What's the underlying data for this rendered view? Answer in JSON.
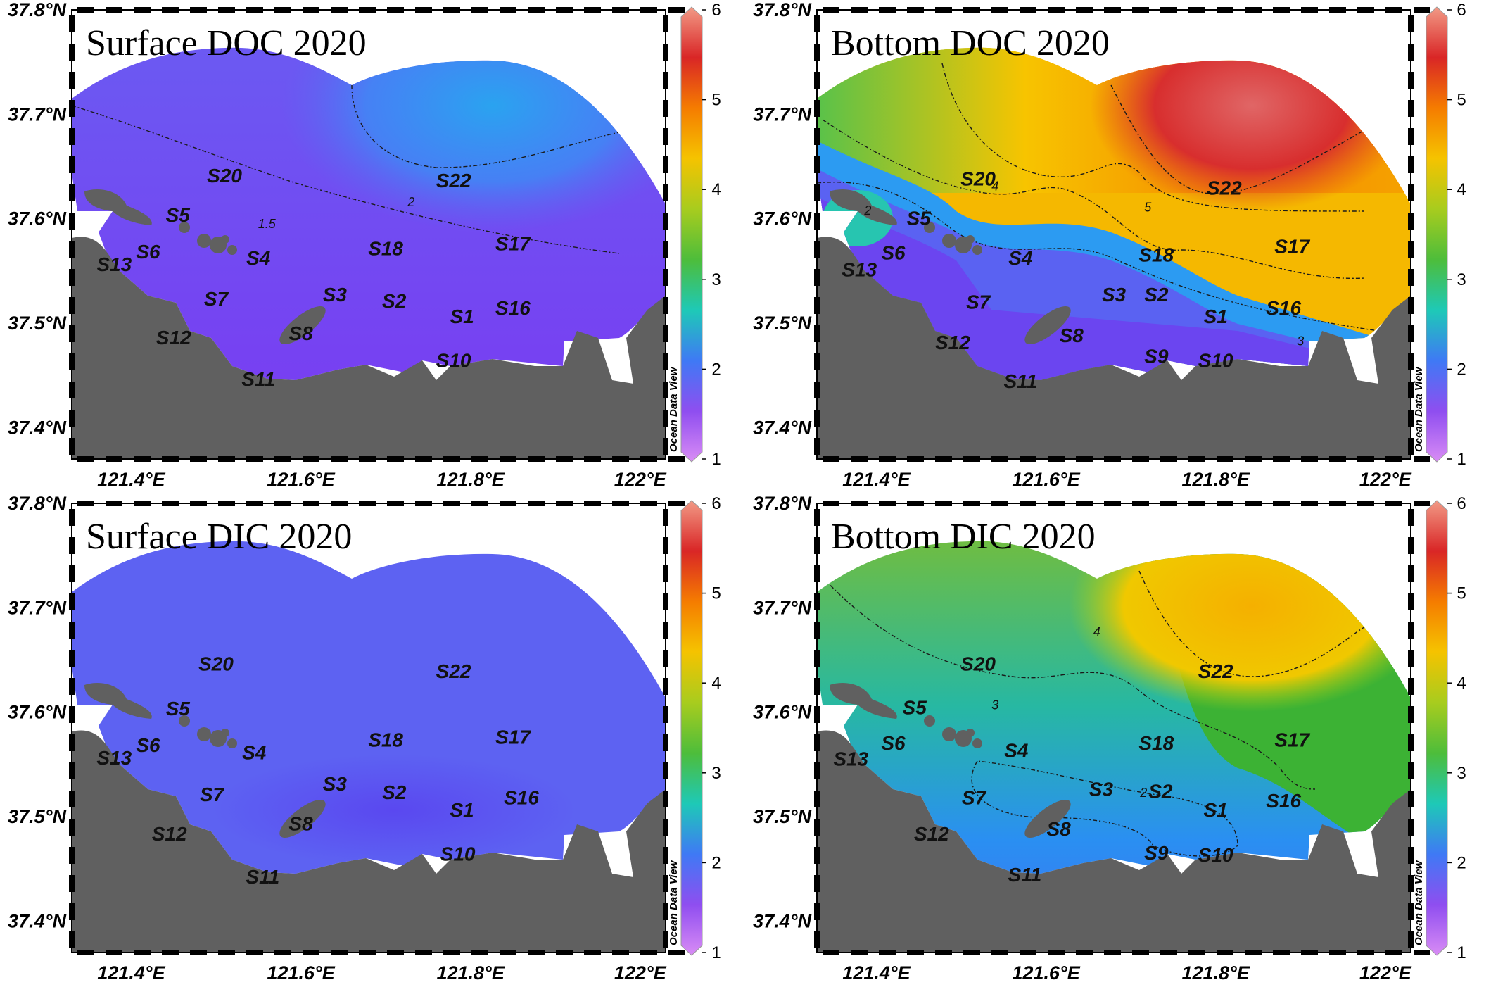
{
  "panels": [
    {
      "id": "surface-doc",
      "title": "Surface  DOC 2020",
      "mode": "surface-doc",
      "stations": [
        {
          "name": "S20",
          "lon": 121.51,
          "lat": 37.635
        },
        {
          "name": "S22",
          "lon": 121.78,
          "lat": 37.63
        },
        {
          "name": "S5",
          "lon": 121.455,
          "lat": 37.597
        },
        {
          "name": "S6",
          "lon": 121.42,
          "lat": 37.562
        },
        {
          "name": "S13",
          "lon": 121.38,
          "lat": 37.55
        },
        {
          "name": "S4",
          "lon": 121.55,
          "lat": 37.556
        },
        {
          "name": "S18",
          "lon": 121.7,
          "lat": 37.565
        },
        {
          "name": "S17",
          "lon": 121.85,
          "lat": 37.57
        },
        {
          "name": "S7",
          "lon": 121.5,
          "lat": 37.517
        },
        {
          "name": "S3",
          "lon": 121.64,
          "lat": 37.521
        },
        {
          "name": "S2",
          "lon": 121.71,
          "lat": 37.515
        },
        {
          "name": "S1",
          "lon": 121.79,
          "lat": 37.5
        },
        {
          "name": "S16",
          "lon": 121.85,
          "lat": 37.508
        },
        {
          "name": "S8",
          "lon": 121.6,
          "lat": 37.484
        },
        {
          "name": "S12",
          "lon": 121.45,
          "lat": 37.48
        },
        {
          "name": "S10",
          "lon": 121.78,
          "lat": 37.458
        },
        {
          "name": "S11",
          "lon": 121.55,
          "lat": 37.44
        }
      ],
      "contours": [
        {
          "label": "2",
          "label_lon": 121.73,
          "label_lat": 37.612
        },
        {
          "label": "1.5",
          "label_lon": 121.56,
          "label_lat": 37.591
        }
      ]
    },
    {
      "id": "bottom-doc",
      "title": "Bottom  DOC 2020",
      "mode": "bottom-doc",
      "stations": [
        {
          "name": "S20",
          "lon": 121.52,
          "lat": 37.632
        },
        {
          "name": "S22",
          "lon": 121.81,
          "lat": 37.623
        },
        {
          "name": "S5",
          "lon": 121.45,
          "lat": 37.594
        },
        {
          "name": "S6",
          "lon": 121.42,
          "lat": 37.561
        },
        {
          "name": "S13",
          "lon": 121.38,
          "lat": 37.545
        },
        {
          "name": "S4",
          "lon": 121.57,
          "lat": 37.556
        },
        {
          "name": "S18",
          "lon": 121.73,
          "lat": 37.559
        },
        {
          "name": "S17",
          "lon": 121.89,
          "lat": 37.567
        },
        {
          "name": "S7",
          "lon": 121.52,
          "lat": 37.514
        },
        {
          "name": "S3",
          "lon": 121.68,
          "lat": 37.521
        },
        {
          "name": "S2",
          "lon": 121.73,
          "lat": 37.521
        },
        {
          "name": "S1",
          "lon": 121.8,
          "lat": 37.5
        },
        {
          "name": "S16",
          "lon": 121.88,
          "lat": 37.508
        },
        {
          "name": "S8",
          "lon": 121.63,
          "lat": 37.482
        },
        {
          "name": "S12",
          "lon": 121.49,
          "lat": 37.475
        },
        {
          "name": "S9",
          "lon": 121.73,
          "lat": 37.462
        },
        {
          "name": "S10",
          "lon": 121.8,
          "lat": 37.458
        },
        {
          "name": "S11",
          "lon": 121.57,
          "lat": 37.438
        }
      ],
      "contours": [
        {
          "label": "2",
          "label_lon": 121.39,
          "label_lat": 37.604
        },
        {
          "label": "4",
          "label_lon": 121.54,
          "label_lat": 37.627
        },
        {
          "label": "5",
          "label_lon": 121.72,
          "label_lat": 37.607
        },
        {
          "label": "3",
          "label_lon": 121.9,
          "label_lat": 37.479
        }
      ]
    },
    {
      "id": "surface-dic",
      "title": "Surface  DIC 2020",
      "mode": "surface-dic",
      "stations": [
        {
          "name": "S20",
          "lon": 121.5,
          "lat": 37.64
        },
        {
          "name": "S22",
          "lon": 121.78,
          "lat": 37.633
        },
        {
          "name": "S5",
          "lon": 121.455,
          "lat": 37.597
        },
        {
          "name": "S6",
          "lon": 121.42,
          "lat": 37.562
        },
        {
          "name": "S13",
          "lon": 121.38,
          "lat": 37.55
        },
        {
          "name": "S4",
          "lon": 121.545,
          "lat": 37.555
        },
        {
          "name": "S18",
          "lon": 121.7,
          "lat": 37.567
        },
        {
          "name": "S17",
          "lon": 121.85,
          "lat": 37.57
        },
        {
          "name": "S7",
          "lon": 121.495,
          "lat": 37.515
        },
        {
          "name": "S3",
          "lon": 121.64,
          "lat": 37.525
        },
        {
          "name": "S2",
          "lon": 121.71,
          "lat": 37.517
        },
        {
          "name": "S1",
          "lon": 121.79,
          "lat": 37.5
        },
        {
          "name": "S16",
          "lon": 121.86,
          "lat": 37.512
        },
        {
          "name": "S8",
          "lon": 121.6,
          "lat": 37.487
        },
        {
          "name": "S12",
          "lon": 121.445,
          "lat": 37.477
        },
        {
          "name": "S10",
          "lon": 121.785,
          "lat": 37.458
        },
        {
          "name": "S11",
          "lon": 121.555,
          "lat": 37.436
        }
      ],
      "contours": []
    },
    {
      "id": "bottom-dic",
      "title": "Bottom  DIC 2020",
      "mode": "bottom-dic",
      "stations": [
        {
          "name": "S20",
          "lon": 121.52,
          "lat": 37.64
        },
        {
          "name": "S22",
          "lon": 121.8,
          "lat": 37.633
        },
        {
          "name": "S5",
          "lon": 121.445,
          "lat": 37.598
        },
        {
          "name": "S6",
          "lon": 121.42,
          "lat": 37.564
        },
        {
          "name": "S13",
          "lon": 121.37,
          "lat": 37.549
        },
        {
          "name": "S4",
          "lon": 121.565,
          "lat": 37.557
        },
        {
          "name": "S18",
          "lon": 121.73,
          "lat": 37.564
        },
        {
          "name": "S17",
          "lon": 121.89,
          "lat": 37.567
        },
        {
          "name": "S7",
          "lon": 121.515,
          "lat": 37.512
        },
        {
          "name": "S3",
          "lon": 121.665,
          "lat": 37.52
        },
        {
          "name": "S2",
          "lon": 121.735,
          "lat": 37.518
        },
        {
          "name": "S1",
          "lon": 121.8,
          "lat": 37.5
        },
        {
          "name": "S16",
          "lon": 121.88,
          "lat": 37.509
        },
        {
          "name": "S8",
          "lon": 121.615,
          "lat": 37.482
        },
        {
          "name": "S12",
          "lon": 121.465,
          "lat": 37.477
        },
        {
          "name": "S9",
          "lon": 121.73,
          "lat": 37.459
        },
        {
          "name": "S10",
          "lon": 121.8,
          "lat": 37.457
        },
        {
          "name": "S11",
          "lon": 121.575,
          "lat": 37.438
        }
      ],
      "contours": [
        {
          "label": "4",
          "label_lon": 121.66,
          "label_lat": 37.673
        },
        {
          "label": "3",
          "label_lon": 121.54,
          "label_lat": 37.603
        },
        {
          "label": "2",
          "label_lon": 121.715,
          "label_lat": 37.519
        }
      ]
    }
  ],
  "axes": {
    "lon_ticks": [
      "121.4°E",
      "121.6°E",
      "121.8°E",
      "122°E"
    ],
    "lon_values": [
      121.4,
      121.6,
      121.8,
      122.0
    ],
    "lat_ticks": [
      "37.4°N",
      "37.5°N",
      "37.6°N",
      "37.7°N",
      "37.8°N"
    ],
    "lat_values": [
      37.4,
      37.5,
      37.6,
      37.7,
      37.8
    ],
    "lon_range": [
      121.33,
      122.03
    ],
    "lat_range": [
      37.37,
      37.8
    ]
  },
  "colorbar": {
    "range": [
      1,
      6
    ],
    "ticks": [
      "1",
      "2",
      "3",
      "4",
      "5",
      "6"
    ],
    "label": "Ocean Data View",
    "colors": [
      "#d98cf5",
      "#8f4ef0",
      "#3f79f5",
      "#1ec9b7",
      "#4dbd3b",
      "#a8cc1e",
      "#f5c300",
      "#f57c00",
      "#d92626",
      "#f29a86"
    ]
  }
}
